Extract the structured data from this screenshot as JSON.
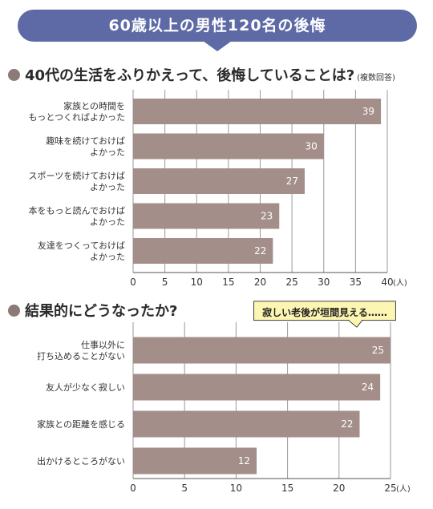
{
  "colors": {
    "banner": "#5d6aa6",
    "bar": "#a38e8a",
    "dot": "#8b7a75",
    "callout_bg": "#fdf6b3",
    "callout_border": "#222222"
  },
  "banner": {
    "title": "60歳以上の男性120名の後悔"
  },
  "section1": {
    "title": "40代の生活をふりかえって、後悔していることは?",
    "note": "(複数回答)"
  },
  "section2": {
    "title": "結果的にどうなったか?"
  },
  "callout": {
    "text": "寂しい老後が垣間見える……"
  },
  "chart_data": [
    {
      "type": "bar",
      "orientation": "horizontal",
      "categories": [
        [
          "家族との時間を",
          "もっとつくればよかった"
        ],
        [
          "趣味を続けておけば",
          "よかった"
        ],
        [
          "スポーツを続けておけば",
          "よかった"
        ],
        [
          "本をもっと読んでおけば",
          "よかった"
        ],
        [
          "友達をつくっておけば",
          "よかった"
        ]
      ],
      "values": [
        39,
        30,
        27,
        23,
        22
      ],
      "xlim": [
        0,
        40
      ],
      "xticks": [
        0,
        5,
        10,
        15,
        20,
        25,
        30,
        35,
        40
      ],
      "unit": "(人)",
      "grid": true
    },
    {
      "type": "bar",
      "orientation": "horizontal",
      "categories": [
        [
          "仕事以外に",
          "打ち込めることがない"
        ],
        [
          "友人が少なく寂しい"
        ],
        [
          "家族との距離を感じる"
        ],
        [
          "出かけるところがない"
        ]
      ],
      "values": [
        25,
        24,
        22,
        12
      ],
      "xlim": [
        0,
        25
      ],
      "xticks": [
        0,
        5,
        10,
        15,
        20,
        25
      ],
      "unit": "(人)",
      "grid": true
    }
  ]
}
